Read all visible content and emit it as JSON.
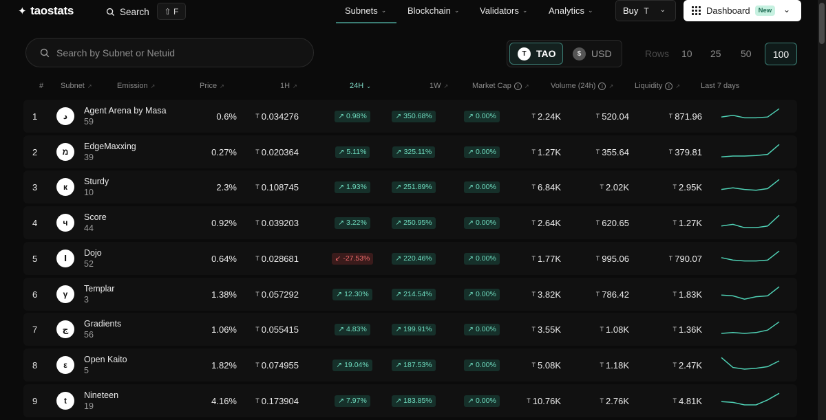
{
  "nav": {
    "logo": "taostats",
    "search_label": "Search",
    "shortcut": "⇧ F",
    "items": [
      {
        "label": "Subnets"
      },
      {
        "label": "Blockchain"
      },
      {
        "label": "Validators"
      },
      {
        "label": "Analytics"
      }
    ],
    "buy_label": "Buy",
    "buy_currency": "T",
    "dashboard_label": "Dashboard",
    "dashboard_badge": "New"
  },
  "toolbar": {
    "search_placeholder": "Search by Subnet or Netuid",
    "currency": {
      "tao": "TAO",
      "usd": "USD",
      "selected": "TAO"
    },
    "rows_label": "Rows",
    "rows_options": [
      "10",
      "25",
      "50",
      "100"
    ],
    "rows_selected": "100"
  },
  "table": {
    "headers": {
      "num": "#",
      "subnet": "Subnet",
      "emission": "Emission",
      "price": "Price",
      "h1": "1H",
      "h24": "24H",
      "w1": "1W",
      "market_cap": "Market Cap",
      "volume": "Volume (24h)",
      "liquidity": "Liquidity",
      "last7": "Last 7 days"
    },
    "sorted_by": "24H",
    "rows": [
      {
        "num": "1",
        "symbol": "د",
        "name": "Agent Arena by Masa",
        "netuid": "59",
        "emission": "0.6%",
        "price": "0.034276",
        "h1": "0.98%",
        "h1_dir": "up",
        "h24": "350.68%",
        "h24_dir": "up",
        "w1": "0.00%",
        "w1_dir": "up",
        "market_cap": "2.24K",
        "volume": "520.04",
        "liquidity": "871.96",
        "spark": [
          0.45,
          0.55,
          0.4,
          0.4,
          0.45,
          0.95
        ]
      },
      {
        "num": "2",
        "symbol": "מ",
        "name": "EdgeMaxxing",
        "netuid": "39",
        "emission": "0.27%",
        "price": "0.020364",
        "h1": "5.11%",
        "h1_dir": "up",
        "h24": "325.11%",
        "h24_dir": "up",
        "w1": "0.00%",
        "w1_dir": "up",
        "market_cap": "1.27K",
        "volume": "355.64",
        "liquidity": "379.81",
        "spark": [
          0.2,
          0.25,
          0.25,
          0.28,
          0.35,
          0.95
        ]
      },
      {
        "num": "3",
        "symbol": "к",
        "name": "Sturdy",
        "netuid": "10",
        "emission": "2.3%",
        "price": "0.108745",
        "h1": "1.93%",
        "h1_dir": "up",
        "h24": "251.89%",
        "h24_dir": "up",
        "w1": "0.00%",
        "w1_dir": "up",
        "market_cap": "6.84K",
        "volume": "2.02K",
        "liquidity": "2.95K",
        "spark": [
          0.35,
          0.45,
          0.35,
          0.3,
          0.4,
          0.95
        ]
      },
      {
        "num": "4",
        "symbol": "ч",
        "name": "Score",
        "netuid": "44",
        "emission": "0.92%",
        "price": "0.039203",
        "h1": "3.22%",
        "h1_dir": "up",
        "h24": "250.95%",
        "h24_dir": "up",
        "w1": "0.00%",
        "w1_dir": "up",
        "market_cap": "2.64K",
        "volume": "620.65",
        "liquidity": "1.27K",
        "spark": [
          0.3,
          0.4,
          0.2,
          0.2,
          0.3,
          0.95
        ]
      },
      {
        "num": "5",
        "symbol": "ا",
        "name": "Dojo",
        "netuid": "52",
        "emission": "0.64%",
        "price": "0.028681",
        "h1": "-27.53%",
        "h1_dir": "down",
        "h24": "220.46%",
        "h24_dir": "up",
        "w1": "0.00%",
        "w1_dir": "up",
        "market_cap": "1.77K",
        "volume": "995.06",
        "liquidity": "790.07",
        "spark": [
          0.55,
          0.4,
          0.35,
          0.35,
          0.4,
          0.95
        ]
      },
      {
        "num": "6",
        "symbol": "γ",
        "name": "Templar",
        "netuid": "3",
        "emission": "1.38%",
        "price": "0.057292",
        "h1": "12.30%",
        "h1_dir": "up",
        "h24": "214.54%",
        "h24_dir": "up",
        "w1": "0.00%",
        "w1_dir": "up",
        "market_cap": "3.82K",
        "volume": "786.42",
        "liquidity": "1.83K",
        "spark": [
          0.45,
          0.4,
          0.2,
          0.35,
          0.4,
          0.95
        ]
      },
      {
        "num": "7",
        "symbol": "ج",
        "name": "Gradients",
        "netuid": "56",
        "emission": "1.06%",
        "price": "0.055415",
        "h1": "4.83%",
        "h1_dir": "up",
        "h24": "199.91%",
        "h24_dir": "up",
        "w1": "0.00%",
        "w1_dir": "up",
        "market_cap": "3.55K",
        "volume": "1.08K",
        "liquidity": "1.36K",
        "spark": [
          0.25,
          0.3,
          0.25,
          0.3,
          0.45,
          0.95
        ]
      },
      {
        "num": "8",
        "symbol": "ε",
        "name": "Open Kaito",
        "netuid": "5",
        "emission": "1.82%",
        "price": "0.074955",
        "h1": "19.04%",
        "h1_dir": "up",
        "h24": "187.53%",
        "h24_dir": "up",
        "w1": "0.00%",
        "w1_dir": "up",
        "market_cap": "5.08K",
        "volume": "1.18K",
        "liquidity": "2.47K",
        "spark": [
          0.95,
          0.35,
          0.25,
          0.3,
          0.4,
          0.75
        ]
      },
      {
        "num": "9",
        "symbol": "t",
        "name": "Nineteen",
        "netuid": "19",
        "emission": "4.16%",
        "price": "0.173904",
        "h1": "7.97%",
        "h1_dir": "up",
        "h24": "183.85%",
        "h24_dir": "up",
        "w1": "0.00%",
        "w1_dir": "up",
        "market_cap": "10.76K",
        "volume": "2.76K",
        "liquidity": "4.81K",
        "spark": [
          0.45,
          0.4,
          0.25,
          0.25,
          0.55,
          0.95
        ]
      }
    ]
  },
  "colors": {
    "accent": "#3b7d74",
    "up": "#6fdcbf",
    "down": "#ee6a6a",
    "spark": "#4fd1b5"
  },
  "icons": {
    "logo": "taostats-logo-icon",
    "search": "search-icon",
    "chevron": "chevron-down-icon",
    "grid": "grid-icon",
    "sort": "sort-icon",
    "info": "info-icon",
    "trend_up": "arrow-up-right-icon",
    "trend_down": "arrow-down-left-icon"
  }
}
